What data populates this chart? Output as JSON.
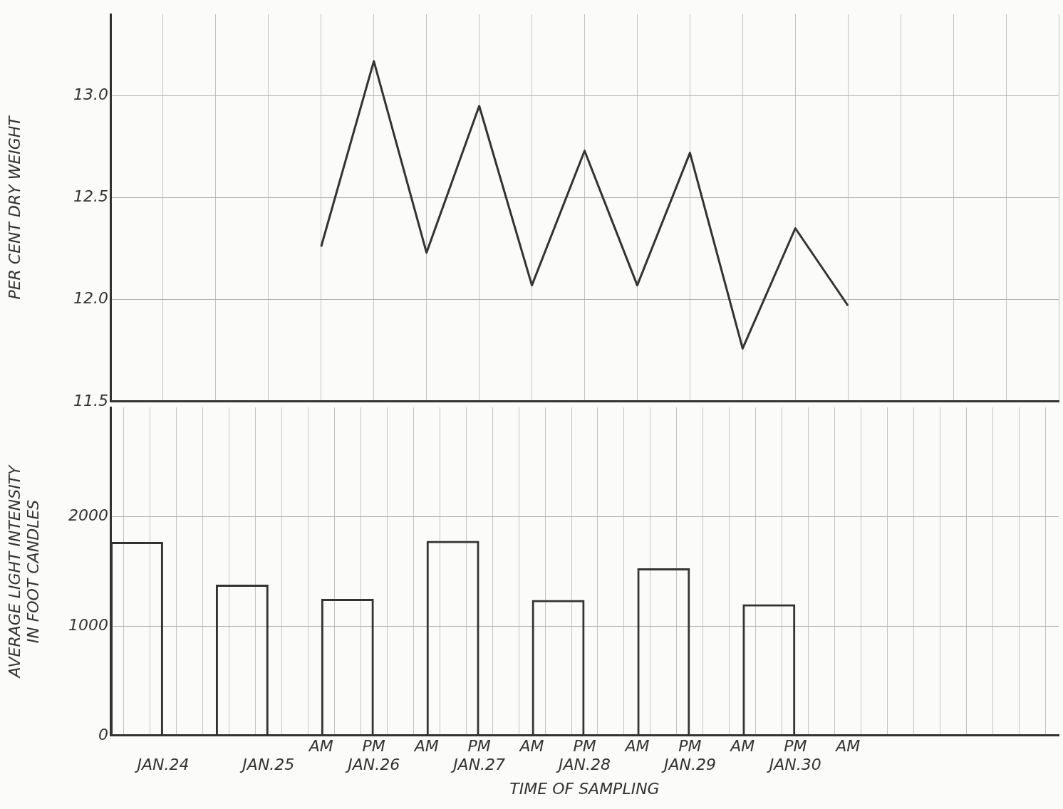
{
  "chart_data": [
    {
      "type": "line",
      "ylabel": "PER CENT DRY WEIGHT",
      "categories": [
        null,
        null,
        null,
        null,
        null,
        null,
        null,
        null,
        null,
        null,
        null,
        null,
        null,
        null,
        null,
        null,
        null,
        null,
        null
      ],
      "series": [
        {
          "color": "#333333",
          "values": [
            null,
            null,
            null,
            null,
            12.26,
            13.17,
            12.23,
            12.95,
            12.07,
            12.73,
            12.07,
            12.72,
            11.76,
            12.35,
            11.97,
            null,
            null,
            null,
            null
          ]
        }
      ],
      "ylim": [
        11.5,
        13.4
      ],
      "yticks": [
        11.5,
        {
          "value": 12,
          "label": "12.0"
        },
        12.5,
        {
          "value": 13,
          "label": "13.0"
        }
      ],
      "tick_labels": "y",
      "grid": true,
      "legend": false,
      "marker": "none",
      "line_style": "solid"
    },
    {
      "type": "bar",
      "ylabel": "AVERAGE LIGHT INTENSITY\nIN FOOT CANDLES",
      "xlabel": "TIME OF SAMPLING",
      "categories": [
        null,
        null,
        "\nJAN.24",
        null,
        null,
        null,
        "\nJAN.25",
        null,
        "AM",
        null,
        "PM\nJAN.26",
        null,
        "AM",
        null,
        "PM\nJAN.27",
        null,
        "AM",
        null,
        "PM\nJAN.28",
        null,
        "AM",
        null,
        "PM\nJAN.29",
        null,
        "AM",
        null,
        "PM\nJAN.30",
        null,
        "AM",
        null,
        null,
        null,
        null,
        null,
        null,
        null,
        null
      ],
      "series": [
        {
          "color": "#333333",
          "values": [
            null,
            1770,
            null,
            null,
            null,
            1380,
            null,
            null,
            null,
            1250,
            null,
            null,
            null,
            1780,
            null,
            null,
            null,
            1240,
            null,
            null,
            null,
            1530,
            null,
            null,
            null,
            1200,
            null,
            null,
            null,
            null,
            null,
            null,
            null,
            null,
            null,
            null,
            null
          ]
        }
      ],
      "ylim": [
        0,
        3000
      ],
      "yticks": [
        0,
        1000,
        2000
      ],
      "grid": true,
      "legend": false
    }
  ]
}
